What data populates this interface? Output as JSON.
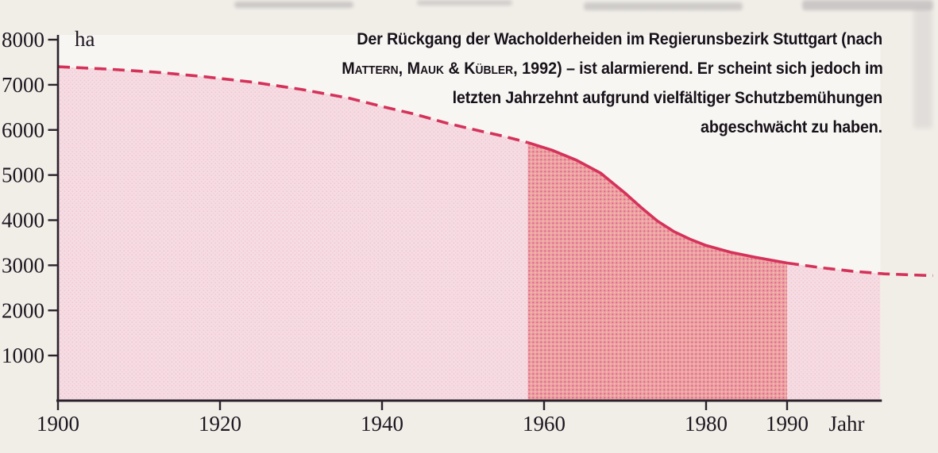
{
  "page": {
    "background": "#f1eee8"
  },
  "annotation": {
    "line1": "Der Rückgang der Wacholderheiden im Regierunsbezirk Stuttgart (nach",
    "line2_authors": "Mattern, Mauk & Kübler, 1992)",
    "line2_rest": " – ist alarmierend. Er scheint sich jedoch im",
    "line3": "letzten Jahrzehnt aufgrund vielfältiger Schutzbemühungen",
    "line4": "abgeschwächt zu haben."
  },
  "chart_data": {
    "type": "area",
    "title": "Rückgang der Wacholderheiden im Regierunsbezirk Stuttgart",
    "xlabel": "Jahr",
    "ylabel": "ha",
    "xlim": [
      1900,
      2008
    ],
    "ylim": [
      0,
      8000
    ],
    "grid": false,
    "legend": "none",
    "x_ticks": [
      1900,
      1920,
      1940,
      1960,
      1980,
      1990
    ],
    "y_ticks": [
      8000,
      7000,
      6000,
      5000,
      4000,
      3000,
      2000,
      1000
    ],
    "x_axis_end": 2001.5,
    "series": [
      {
        "name": "pre-1958-dashed",
        "style": "dashed",
        "points": [
          [
            1900,
            7400
          ],
          [
            1906,
            7350
          ],
          [
            1912,
            7280
          ],
          [
            1918,
            7180
          ],
          [
            1924,
            7060
          ],
          [
            1930,
            6900
          ],
          [
            1936,
            6700
          ],
          [
            1940,
            6520
          ],
          [
            1944,
            6350
          ],
          [
            1948,
            6150
          ],
          [
            1952,
            5980
          ],
          [
            1955,
            5860
          ],
          [
            1958,
            5720
          ]
        ]
      },
      {
        "name": "solid-1958-1990",
        "style": "solid",
        "points": [
          [
            1958,
            5720
          ],
          [
            1961,
            5550
          ],
          [
            1964,
            5330
          ],
          [
            1967,
            5040
          ],
          [
            1970,
            4600
          ],
          [
            1972,
            4280
          ],
          [
            1974,
            3980
          ],
          [
            1976,
            3750
          ],
          [
            1978,
            3580
          ],
          [
            1980,
            3440
          ],
          [
            1983,
            3290
          ],
          [
            1986,
            3180
          ],
          [
            1990,
            3050
          ]
        ]
      },
      {
        "name": "post-1990-dashed",
        "style": "dashed",
        "points": [
          [
            1990,
            3050
          ],
          [
            1994,
            2950
          ],
          [
            1998,
            2870
          ],
          [
            2002,
            2810
          ],
          [
            2008,
            2770
          ]
        ]
      }
    ],
    "fills": [
      {
        "from": 1900,
        "to": 1958,
        "tone": "light"
      },
      {
        "from": 1958,
        "to": 1990,
        "tone": "dark"
      },
      {
        "from": 1990,
        "to": 2001.5,
        "tone": "light"
      }
    ],
    "colors": {
      "line": "#d5325a",
      "fill_light": "#f6dde3",
      "fill_dark": "#eda1ab",
      "axis": "#2b222c",
      "label": "#1d1620",
      "plot_bg": "#f8f6f3"
    }
  }
}
